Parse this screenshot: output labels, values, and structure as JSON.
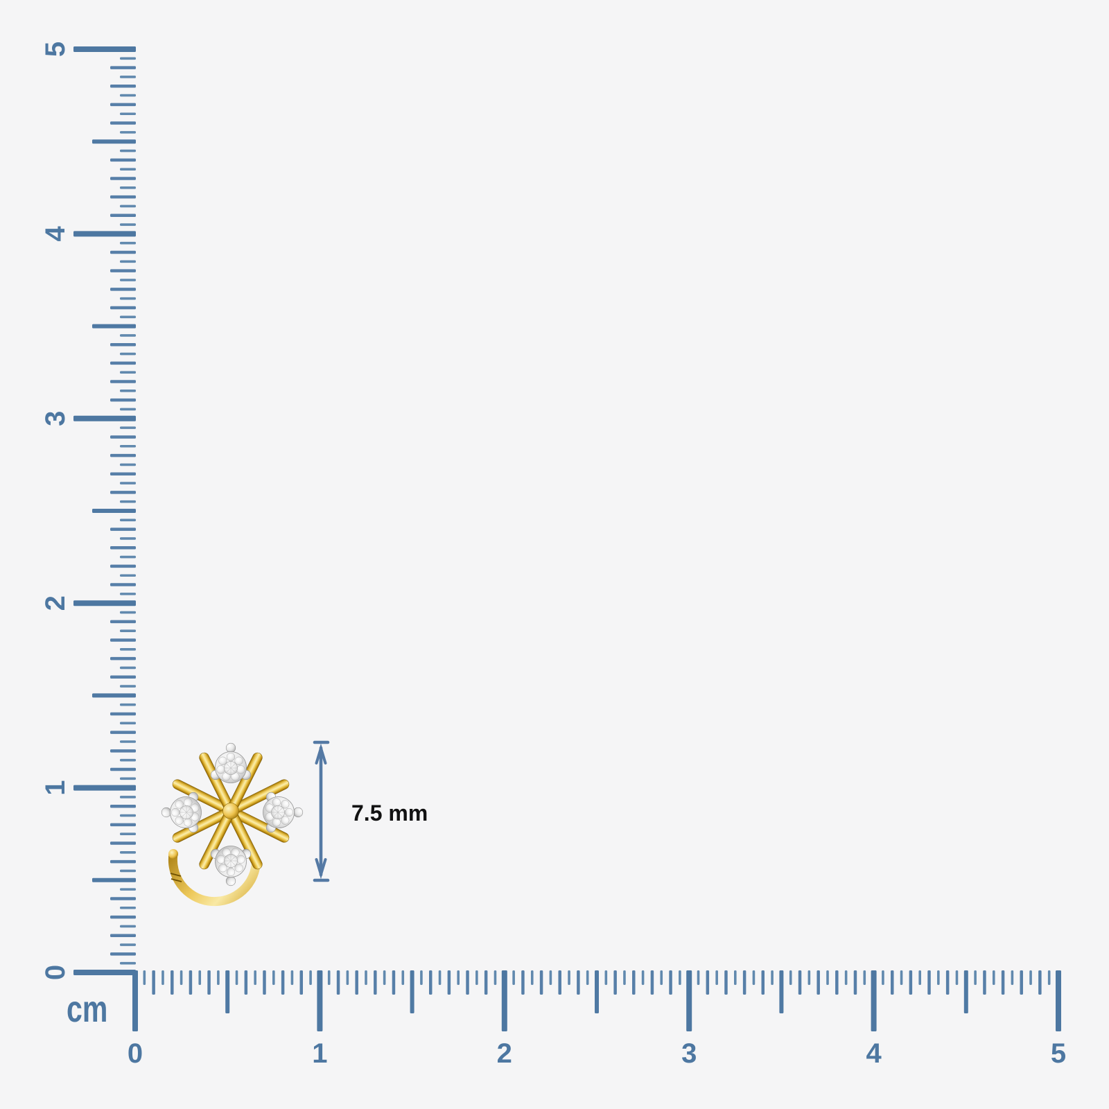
{
  "canvas": {
    "background_color": "#f5f5f6"
  },
  "rulers": {
    "unit_label": "cm",
    "tick_color_major": "#4d77a1",
    "tick_color_half": "#4f79a3",
    "tick_color_mm": "#577fa8",
    "tick_color_minor": "#6189ae",
    "number_color": "#4d77a1",
    "vertical": {
      "orientation": "vertical",
      "labels": [
        "0",
        "1",
        "2",
        "3",
        "4",
        "5"
      ]
    },
    "horizontal": {
      "orientation": "horizontal",
      "labels": [
        "0",
        "1",
        "2",
        "3",
        "4",
        "5"
      ]
    }
  },
  "product": {
    "icon": "gold-diamond-nose-pin-image",
    "gold_color": "#e3b33c",
    "diamond_color": "#e9e9e9"
  },
  "dimension": {
    "label": "7.5 mm",
    "arrow_color": "#5479a4",
    "text_color": "#121212"
  }
}
